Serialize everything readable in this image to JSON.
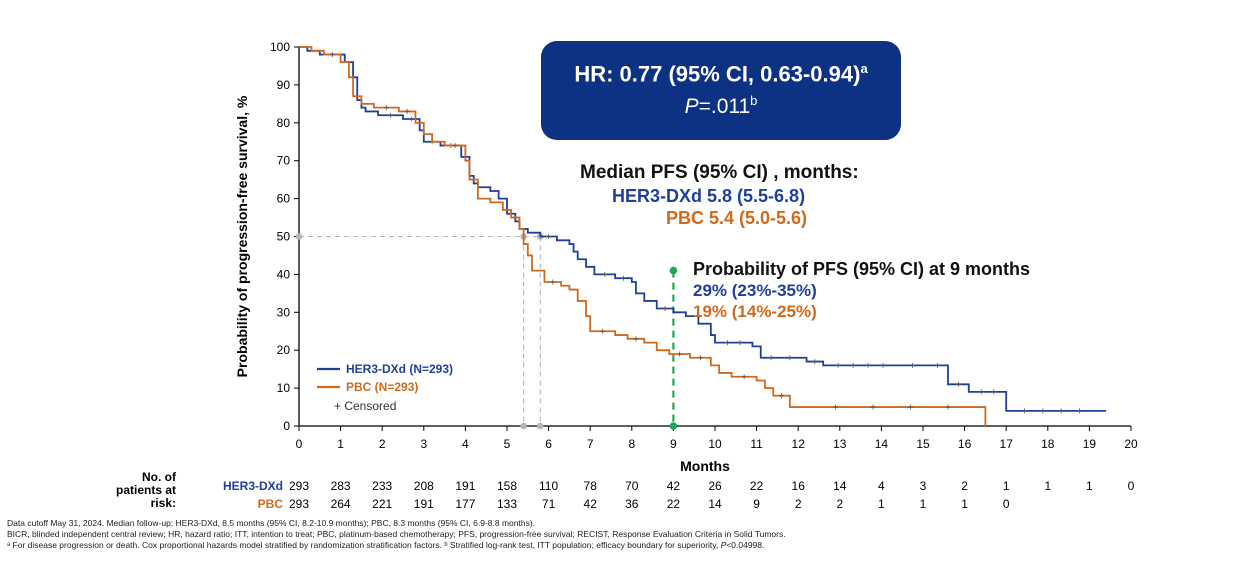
{
  "chart_data": {
    "type": "line",
    "title": "",
    "xlabel": "Months",
    "ylabel": "Probability of progression-free survival, %",
    "xlim": [
      0,
      20
    ],
    "ylim": [
      0,
      100
    ],
    "x_ticks": [
      "0",
      "1",
      "2",
      "3",
      "4",
      "5",
      "6",
      "7",
      "8",
      "9",
      "10",
      "11",
      "12",
      "13",
      "14",
      "15",
      "16",
      "17",
      "18",
      "19",
      "20"
    ],
    "y_ticks": [
      "0",
      "10",
      "20",
      "30",
      "40",
      "50",
      "60",
      "70",
      "80",
      "90",
      "100"
    ],
    "series": [
      {
        "name": "HER3-DXd (N=293)",
        "color": "#1f3f99",
        "steps": [
          [
            0,
            100
          ],
          [
            0.2,
            99
          ],
          [
            0.5,
            98
          ],
          [
            1.1,
            96
          ],
          [
            1.3,
            92
          ],
          [
            1.4,
            86
          ],
          [
            1.5,
            84
          ],
          [
            1.6,
            83
          ],
          [
            1.9,
            82
          ],
          [
            2.5,
            81
          ],
          [
            2.9,
            78
          ],
          [
            3.0,
            75
          ],
          [
            3.4,
            74
          ],
          [
            3.9,
            71
          ],
          [
            4.1,
            66
          ],
          [
            4.2,
            64
          ],
          [
            4.3,
            63
          ],
          [
            4.6,
            62
          ],
          [
            4.8,
            60
          ],
          [
            5.0,
            56
          ],
          [
            5.2,
            54
          ],
          [
            5.3,
            52
          ],
          [
            5.5,
            51
          ],
          [
            5.8,
            50
          ],
          [
            6.2,
            49
          ],
          [
            6.5,
            48
          ],
          [
            6.6,
            46
          ],
          [
            6.7,
            44
          ],
          [
            6.9,
            42
          ],
          [
            7.1,
            40
          ],
          [
            7.6,
            39
          ],
          [
            8.0,
            38
          ],
          [
            8.1,
            35
          ],
          [
            8.3,
            33
          ],
          [
            8.6,
            31
          ],
          [
            9.0,
            30
          ],
          [
            9.3,
            29
          ],
          [
            9.6,
            27
          ],
          [
            9.9,
            24
          ],
          [
            10.0,
            22
          ],
          [
            10.9,
            21
          ],
          [
            11.1,
            18
          ],
          [
            11.6,
            18
          ],
          [
            12.0,
            18
          ],
          [
            12.2,
            17
          ],
          [
            12.6,
            16
          ],
          [
            14.4,
            16
          ],
          [
            15.1,
            16
          ],
          [
            15.6,
            11
          ],
          [
            16.1,
            9
          ],
          [
            17.0,
            4
          ],
          [
            19.2,
            4
          ]
        ],
        "end": 19.4
      },
      {
        "name": "PBC (N=293)",
        "color": "#cf6a1c",
        "steps": [
          [
            0,
            100
          ],
          [
            0.3,
            99
          ],
          [
            0.6,
            98
          ],
          [
            1.0,
            96
          ],
          [
            1.2,
            92
          ],
          [
            1.3,
            87
          ],
          [
            1.5,
            85
          ],
          [
            1.8,
            84
          ],
          [
            2.4,
            83
          ],
          [
            2.8,
            80
          ],
          [
            3.0,
            77
          ],
          [
            3.2,
            75
          ],
          [
            3.5,
            74
          ],
          [
            4.0,
            70
          ],
          [
            4.1,
            65
          ],
          [
            4.3,
            60
          ],
          [
            4.6,
            59
          ],
          [
            4.9,
            57
          ],
          [
            5.1,
            55
          ],
          [
            5.3,
            52
          ],
          [
            5.4,
            48
          ],
          [
            5.5,
            45
          ],
          [
            5.6,
            41
          ],
          [
            5.9,
            38
          ],
          [
            6.3,
            37
          ],
          [
            6.5,
            36
          ],
          [
            6.7,
            33
          ],
          [
            6.9,
            29
          ],
          [
            7.0,
            25
          ],
          [
            7.6,
            24
          ],
          [
            7.9,
            23
          ],
          [
            8.3,
            22
          ],
          [
            8.6,
            20
          ],
          [
            8.9,
            19
          ],
          [
            9.4,
            18
          ],
          [
            9.9,
            16
          ],
          [
            10.1,
            14
          ],
          [
            10.4,
            13
          ],
          [
            11.0,
            12
          ],
          [
            11.2,
            10
          ],
          [
            11.4,
            8
          ],
          [
            11.8,
            5
          ],
          [
            12.0,
            5
          ],
          [
            16.5,
            5
          ],
          [
            16.5,
            0
          ]
        ],
        "end": 16.5
      }
    ],
    "censor_label": "+ Censored",
    "median_reference": {
      "y": 50,
      "her3_x": 5.8,
      "pbc_x": 5.4
    },
    "landmark_x": 9,
    "hr_text": "HR: 0.77 (95% CI, 0.63-0.94)",
    "hr_sup": "a",
    "p_label": "P",
    "p_value": "=.011",
    "p_sup": "b",
    "median_title": "Median PFS (95% CI) , months:",
    "median_her3": "HER3-DXd 5.8 (5.5-6.8)",
    "median_pbc": "PBC 5.4 (5.0-5.6)",
    "prob_title": "Probability of PFS (95% CI) at 9 months",
    "prob_her3": "29% (23%-35%)",
    "prob_pbc": "19% (14%-25%)"
  },
  "risk_table": {
    "header_lines": [
      "No. of",
      "patients at",
      "risk:"
    ],
    "rows": [
      {
        "label": "HER3-DXd",
        "color": "#1f3f99",
        "values": [
          "293",
          "283",
          "233",
          "208",
          "191",
          "158",
          "110",
          "78",
          "70",
          "42",
          "26",
          "22",
          "16",
          "14",
          "4",
          "3",
          "2",
          "1",
          "1",
          "1",
          "0"
        ]
      },
      {
        "label": "PBC",
        "color": "#cf6a1c",
        "values": [
          "293",
          "264",
          "221",
          "191",
          "177",
          "133",
          "71",
          "42",
          "36",
          "22",
          "14",
          "9",
          "2",
          "2",
          "1",
          "1",
          "1",
          "0"
        ]
      }
    ]
  },
  "footnotes": {
    "line1": "Data cutoff May 31, 2024. Median follow-up: HER3-DXd, 8.5 months (95% CI, 8.2-10.9 months); PBC, 8.3 months (95% CI, 6.9-8.8 months).",
    "line2": "BICR, blinded independent central review; HR, hazard ratio; ITT, intention to treat; PBC, platinum-based chemotherapy; PFS, progression-free survival; RECIST, Response Evaluation Criteria in Solid Tumors.",
    "line3a": "ᵃ For disease progression or death. Cox proportional hazards model stratified by randomization stratification factors. ᵇ Stratified log-rank test, ITT population; efficacy boundary for superiority, ",
    "line3p": "P",
    "line3b": "<0.04998."
  }
}
